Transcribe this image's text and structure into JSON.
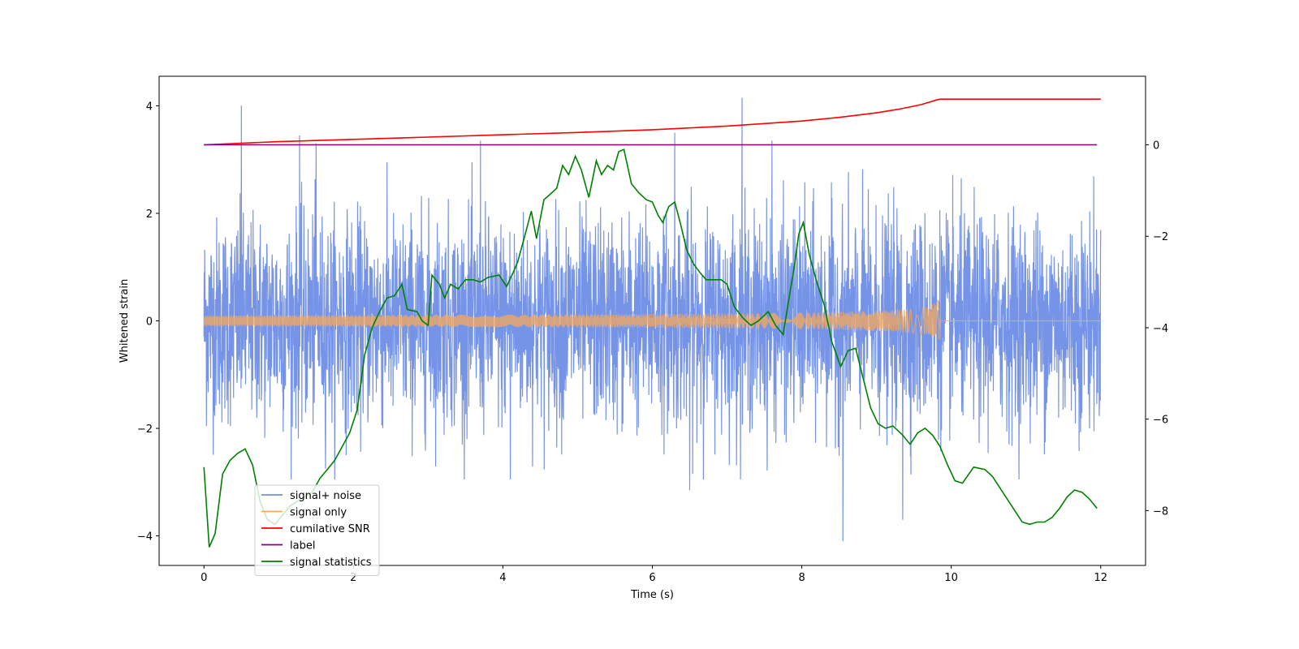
{
  "chart_data": {
    "type": "line",
    "xlabel": "Time (s)",
    "ylabel": "Whitened strain",
    "xlim": [
      -0.6,
      12.6
    ],
    "ylim": [
      -4.55,
      4.55
    ],
    "y2lim": [
      -9.2,
      1.5
    ],
    "x_ticks": [
      0,
      2,
      4,
      6,
      8,
      10,
      12
    ],
    "y_ticks": [
      -4,
      -2,
      0,
      2,
      4
    ],
    "y2_ticks": [
      -8,
      -6,
      -4,
      -2,
      0
    ],
    "legend_position": "lower-left",
    "series": [
      {
        "name": "signal+ noise",
        "axis": "left",
        "color": "#6f8ee6",
        "x_range": [
          0,
          12
        ],
        "mean": 0,
        "amplitude_std": 0.95,
        "spikes": [
          {
            "x": 0.5,
            "y": 4.0
          },
          {
            "x": 1.28,
            "y": 3.45
          },
          {
            "x": 1.5,
            "y": 3.3
          },
          {
            "x": 3.7,
            "y": 3.35
          },
          {
            "x": 6.3,
            "y": 3.5
          },
          {
            "x": 7.2,
            "y": 4.15
          },
          {
            "x": 7.6,
            "y": 3.35
          },
          {
            "x": 8.55,
            "y": -4.1
          },
          {
            "x": 9.35,
            "y": -3.7
          },
          {
            "x": 6.5,
            "y": -3.15
          },
          {
            "x": 4.1,
            "y": -2.95
          }
        ]
      },
      {
        "name": "signal only",
        "axis": "left",
        "color": "#f5a85a",
        "chirp_end": 9.85,
        "peak_amplitude": 0.48
      },
      {
        "name": "cumilative SNR",
        "axis": "right",
        "color": "#ff0000",
        "x": [
          0,
          1,
          2,
          3,
          4,
          5,
          6,
          7,
          8,
          8.5,
          9,
          9.3,
          9.6,
          9.8,
          9.85,
          12
        ],
        "y": [
          0,
          0.07,
          0.12,
          0.17,
          0.22,
          0.27,
          0.33,
          0.41,
          0.52,
          0.6,
          0.7,
          0.78,
          0.88,
          0.98,
          1.0,
          1.0
        ]
      },
      {
        "name": "label",
        "axis": "right",
        "color": "#800080",
        "x": [
          0,
          11.95
        ],
        "y": [
          0,
          0
        ]
      },
      {
        "name": "signal statistics",
        "axis": "right",
        "color": "#008000",
        "x": [
          0,
          0.07,
          0.15,
          0.25,
          0.35,
          0.45,
          0.55,
          0.65,
          0.75,
          0.85,
          0.95,
          1.05,
          1.15,
          1.25,
          1.35,
          1.45,
          1.55,
          1.65,
          1.75,
          1.85,
          1.95,
          2.05,
          2.15,
          2.25,
          2.35,
          2.45,
          2.55,
          2.65,
          2.72,
          2.85,
          2.92,
          3.0,
          3.05,
          3.15,
          3.22,
          3.3,
          3.4,
          3.5,
          3.6,
          3.7,
          3.8,
          3.95,
          4.05,
          4.15,
          4.2,
          4.3,
          4.38,
          4.45,
          4.55,
          4.62,
          4.72,
          4.8,
          4.88,
          4.97,
          5.05,
          5.15,
          5.25,
          5.32,
          5.4,
          5.48,
          5.55,
          5.62,
          5.72,
          5.82,
          5.92,
          6.0,
          6.08,
          6.14,
          6.22,
          6.3,
          6.38,
          6.46,
          6.55,
          6.64,
          6.72,
          6.85,
          6.92,
          7.0,
          7.1,
          7.22,
          7.32,
          7.42,
          7.55,
          7.65,
          7.75,
          7.82,
          7.9,
          7.96,
          8.02,
          8.1,
          8.2,
          8.3,
          8.4,
          8.52,
          8.62,
          8.72,
          8.82,
          8.92,
          9.02,
          9.12,
          9.22,
          9.35,
          9.45,
          9.55,
          9.65,
          9.75,
          9.85,
          9.95,
          10.05,
          10.15,
          10.3,
          10.45,
          10.55,
          10.65,
          10.75,
          10.85,
          10.95,
          11.05,
          11.15,
          11.25,
          11.35,
          11.45,
          11.55,
          11.65,
          11.75,
          11.85,
          11.95
        ],
        "y": [
          -7.05,
          -8.8,
          -8.5,
          -7.2,
          -6.9,
          -6.75,
          -6.65,
          -7.0,
          -7.8,
          -8.2,
          -8.3,
          -8.1,
          -7.9,
          -7.8,
          -7.7,
          -7.6,
          -7.3,
          -7.1,
          -6.9,
          -6.6,
          -6.3,
          -5.8,
          -4.6,
          -4.0,
          -3.65,
          -3.35,
          -3.3,
          -3.05,
          -3.6,
          -3.65,
          -3.85,
          -3.95,
          -2.85,
          -3.05,
          -3.35,
          -3.05,
          -3.15,
          -2.95,
          -2.95,
          -3.0,
          -2.9,
          -2.85,
          -3.1,
          -2.75,
          -2.55,
          -1.95,
          -1.45,
          -2.05,
          -1.2,
          -1.1,
          -0.95,
          -0.45,
          -0.65,
          -0.25,
          -0.55,
          -1.15,
          -0.35,
          -0.65,
          -0.45,
          -0.55,
          -0.15,
          -0.1,
          -0.85,
          -1.05,
          -1.2,
          -1.25,
          -1.55,
          -1.7,
          -1.35,
          -1.25,
          -1.75,
          -2.3,
          -2.6,
          -2.8,
          -2.95,
          -2.95,
          -2.95,
          -3.05,
          -3.55,
          -3.8,
          -3.95,
          -3.85,
          -3.65,
          -3.95,
          -4.15,
          -3.45,
          -2.65,
          -1.95,
          -1.7,
          -2.4,
          -3.0,
          -3.5,
          -4.3,
          -4.85,
          -4.5,
          -4.45,
          -5.1,
          -5.75,
          -6.1,
          -6.2,
          -6.15,
          -6.35,
          -6.55,
          -6.3,
          -6.2,
          -6.35,
          -6.6,
          -7.0,
          -7.35,
          -7.4,
          -7.05,
          -7.1,
          -7.25,
          -7.5,
          -7.75,
          -8.0,
          -8.25,
          -8.3,
          -8.25,
          -8.25,
          -8.15,
          -7.95,
          -7.7,
          -7.55,
          -7.6,
          -7.75,
          -7.95
        ]
      }
    ]
  }
}
